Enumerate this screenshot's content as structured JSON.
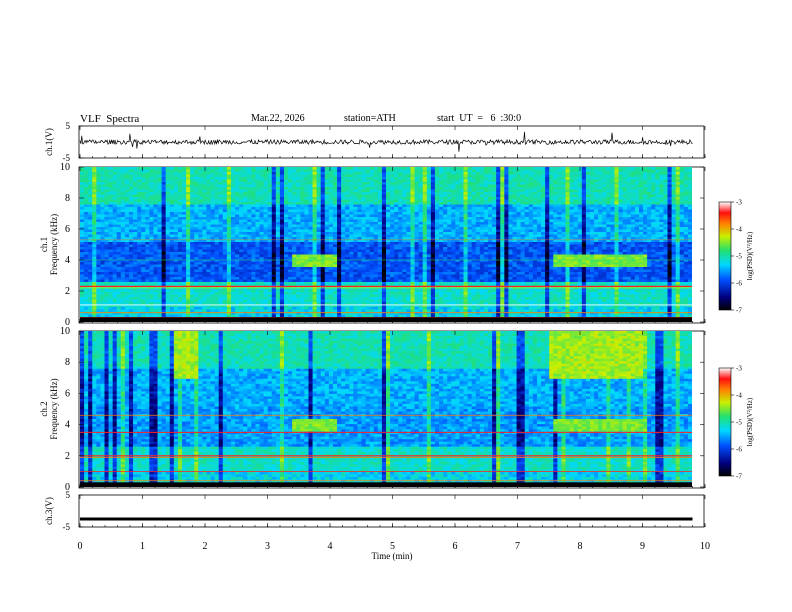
{
  "header": {
    "title": "VLF  Spectra",
    "date": "Mar.22, 2026",
    "station": "station=ATH",
    "start": "start  UT  =   6  :30:0"
  },
  "chart_data": [
    {
      "type": "line",
      "name": "ch1-waveform",
      "ylabel": "ch.1(V)",
      "ylim": [
        -5,
        5
      ],
      "y_ticks": [
        "5",
        "-5"
      ],
      "xlim": [
        0,
        10
      ],
      "x_extent": 9.8,
      "description_level": 0
    },
    {
      "type": "heatmap",
      "name": "ch1-spectrogram",
      "ylabel": "ch.1\nFrequency (kHz)",
      "ylabel_lines": [
        "ch.1",
        "Frequency (kHz)"
      ],
      "ylim": [
        0,
        10
      ],
      "y_ticks": [
        "0",
        "2",
        "4",
        "6",
        "8",
        "10"
      ],
      "colorbar": {
        "label": "log(PSD)(V²/Hz)",
        "range": [
          -7,
          -3
        ],
        "ticks": [
          "-3",
          "-4",
          "-5",
          "-6",
          "-7"
        ]
      }
    },
    {
      "type": "heatmap",
      "name": "ch2-spectrogram",
      "ylabel": "ch.2\nFrequency (kHz)",
      "ylabel_lines": [
        "ch.2",
        "Frequency (kHz)"
      ],
      "ylim": [
        0,
        10
      ],
      "y_ticks": [
        "0",
        "2",
        "4",
        "6",
        "8",
        "10"
      ],
      "colorbar": {
        "label": "log(PSD)(V²/Hz)",
        "range": [
          -7,
          -3
        ],
        "ticks": [
          "-3",
          "-4",
          "-5",
          "-6",
          "-7"
        ]
      }
    },
    {
      "type": "line",
      "name": "ch3-waveform",
      "ylabel": "ch.3(V)",
      "ylim": [
        -5,
        5
      ],
      "y_ticks": [
        "5",
        "-5"
      ],
      "xlim": [
        0,
        10
      ],
      "x_extent": 9.8,
      "level": -2.5
    }
  ],
  "x_axis": {
    "label": "Time  (min)",
    "range": [
      0,
      10
    ],
    "ticks": [
      "0",
      "1",
      "2",
      "3",
      "4",
      "5",
      "6",
      "7",
      "8",
      "9",
      "10"
    ]
  }
}
